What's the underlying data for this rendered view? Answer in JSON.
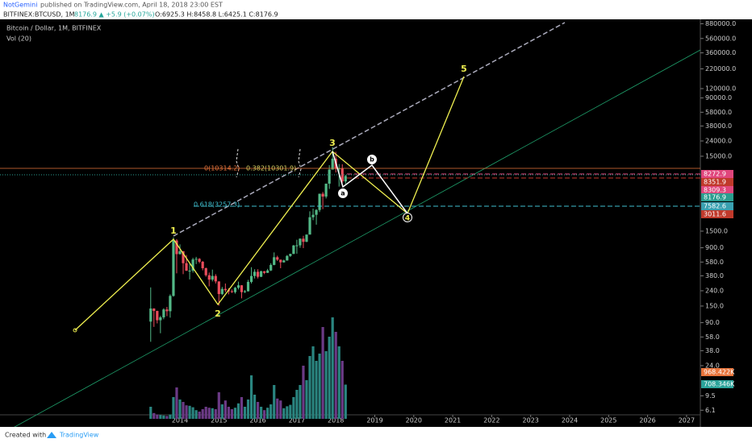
{
  "header": {
    "author": "NotGemini",
    "published": "published on TradingView.com, April 18, 2018 23:00 EST",
    "symbol": "BITFINEX:BTCUSD, 1M",
    "change": "8176.9 ▲ +5.9 (+0.07%)",
    "ohlc": "O:6925.3 H:8458.8 L:6425.1 C:8176.9"
  },
  "chart_data": {
    "type": "candlestick",
    "title": "Bitcoin / Dollar, 1M, BITFINEX",
    "indicator": "Vol (20)",
    "log_scale": true,
    "grid": false,
    "up_color": "#53b987",
    "down_color": "#eb4d5c",
    "vol_up_color": "#2a8580",
    "vol_down_color": "#6b3a86",
    "x": [
      "2013-04",
      "2013-05",
      "2013-06",
      "2013-07",
      "2013-08",
      "2013-09",
      "2013-10",
      "2013-11",
      "2013-12",
      "2014-01",
      "2014-02",
      "2014-03",
      "2014-04",
      "2014-05",
      "2014-06",
      "2014-07",
      "2014-08",
      "2014-09",
      "2014-10",
      "2014-11",
      "2014-12",
      "2015-01",
      "2015-02",
      "2015-03",
      "2015-04",
      "2015-05",
      "2015-06",
      "2015-07",
      "2015-08",
      "2015-09",
      "2015-10",
      "2015-11",
      "2015-12",
      "2016-01",
      "2016-02",
      "2016-03",
      "2016-04",
      "2016-05",
      "2016-06",
      "2016-07",
      "2016-08",
      "2016-09",
      "2016-10",
      "2016-11",
      "2016-12",
      "2017-01",
      "2017-02",
      "2017-03",
      "2017-04",
      "2017-05",
      "2017-06",
      "2017-07",
      "2017-08",
      "2017-09",
      "2017-10",
      "2017-11",
      "2017-12",
      "2018-01",
      "2018-02",
      "2018-03",
      "2018-04"
    ],
    "open": [
      93,
      139,
      129,
      97,
      106,
      135,
      128,
      205,
      1125,
      740,
      810,
      560,
      445,
      445,
      628,
      640,
      585,
      480,
      387,
      338,
      378,
      320,
      217,
      254,
      244,
      236,
      230,
      263,
      284,
      230,
      236,
      315,
      378,
      430,
      369,
      437,
      416,
      448,
      531,
      673,
      624,
      575,
      609,
      700,
      745,
      966,
      970,
      1190,
      1080,
      1350,
      2300,
      2480,
      2875,
      4735,
      4340,
      6450,
      9950,
      13900,
      10200,
      10300,
      6925.3
    ],
    "high": [
      266,
      140,
      130,
      111,
      140,
      146,
      215,
      1240,
      1175,
      1000,
      810,
      720,
      550,
      660,
      680,
      655,
      600,
      490,
      420,
      460,
      400,
      320,
      270,
      300,
      260,
      250,
      270,
      318,
      285,
      245,
      335,
      495,
      465,
      465,
      445,
      440,
      470,
      560,
      780,
      705,
      625,
      625,
      720,
      750,
      980,
      1150,
      1200,
      1300,
      1350,
      2760,
      3000,
      2950,
      4750,
      5000,
      6470,
      11400,
      19890,
      17200,
      11800,
      11700,
      8458.8
    ],
    "low": [
      50,
      79,
      88,
      65,
      100,
      110,
      105,
      200,
      410,
      730,
      400,
      440,
      340,
      420,
      545,
      560,
      450,
      370,
      275,
      320,
      300,
      152,
      210,
      230,
      215,
      225,
      220,
      250,
      190,
      225,
      235,
      300,
      350,
      350,
      365,
      400,
      415,
      440,
      525,
      600,
      480,
      570,
      605,
      680,
      740,
      750,
      900,
      890,
      1070,
      1350,
      2100,
      1830,
      2700,
      2950,
      4100,
      5500,
      10700,
      9100,
      5900,
      6600,
      6425.1
    ],
    "close": [
      139,
      129,
      97,
      106,
      135,
      128,
      205,
      1125,
      740,
      810,
      560,
      445,
      445,
      628,
      640,
      585,
      480,
      387,
      338,
      378,
      320,
      217,
      254,
      244,
      236,
      230,
      263,
      284,
      230,
      236,
      315,
      378,
      430,
      369,
      437,
      416,
      448,
      531,
      673,
      624,
      575,
      609,
      700,
      745,
      966,
      970,
      1190,
      1080,
      1350,
      2300,
      2480,
      2875,
      4735,
      4340,
      6450,
      9950,
      13900,
      10200,
      10300,
      6925.3,
      8176.9
    ],
    "volume": [
      250,
      120,
      90,
      80,
      70,
      60,
      90,
      450,
      650,
      400,
      350,
      280,
      270,
      240,
      180,
      150,
      200,
      250,
      230,
      220,
      200,
      550,
      300,
      380,
      250,
      200,
      230,
      320,
      450,
      250,
      400,
      900,
      500,
      350,
      250,
      180,
      230,
      300,
      700,
      420,
      380,
      220,
      260,
      290,
      450,
      600,
      700,
      1100,
      800,
      1300,
      1500,
      1200,
      1350,
      1900,
      1400,
      1700,
      2100,
      1800,
      1500,
      1200,
      708.346
    ],
    "ylim": [
      4.68,
      1114000
    ],
    "volume_lim": [
      0,
      3000
    ],
    "yticks": [
      {
        "value": 880000,
        "label": "880000.0"
      },
      {
        "value": 560000,
        "label": "560000.0"
      },
      {
        "value": 360000,
        "label": "360000.0"
      },
      {
        "value": 220000,
        "label": "220000.0"
      },
      {
        "value": 120000,
        "label": "120000.0"
      },
      {
        "value": 90000,
        "label": "90000.0"
      },
      {
        "value": 58000,
        "label": "58000.0"
      },
      {
        "value": 38000,
        "label": "38000.0"
      },
      {
        "value": 24000,
        "label": "24000.0"
      },
      {
        "value": 15000,
        "label": "15000.0"
      },
      {
        "value": 1500,
        "label": "1500.0"
      },
      {
        "value": 900,
        "label": "900.0"
      },
      {
        "value": 580,
        "label": "580.0"
      },
      {
        "value": 380,
        "label": "380.0"
      },
      {
        "value": 240,
        "label": "240.0"
      },
      {
        "value": 150,
        "label": "150.0"
      },
      {
        "value": 90,
        "label": "90.0"
      },
      {
        "value": 58,
        "label": "58.0"
      },
      {
        "value": 38,
        "label": "38.0"
      },
      {
        "value": 24,
        "label": "24.0"
      },
      {
        "value": 9.5,
        "label": "9.5"
      },
      {
        "value": 6.1,
        "label": "6.1"
      }
    ],
    "xticks": [
      "2014",
      "2015",
      "2016",
      "2017",
      "2018",
      "2019",
      "2020",
      "2021",
      "2022",
      "2023",
      "2024",
      "2025",
      "2026",
      "2027"
    ],
    "annotations": {
      "wave": [
        "1",
        "2",
        "3",
        "4",
        "5"
      ],
      "abc": [
        "a",
        "b"
      ],
      "fib": [
        "0(10314.2)",
        "0.382(10301.9)",
        "0.618(3257.3)"
      ]
    },
    "price_badges": [
      {
        "label": "8272.9",
        "color": "#e0467c"
      },
      {
        "label": "8351.9",
        "color": "#c0392b"
      },
      {
        "label": "8309.3",
        "color": "#e0467c"
      },
      {
        "label": "8176.9",
        "color": "#2a9d8f"
      },
      {
        "label": "7582.6",
        "color": "#3aa0b0"
      },
      {
        "label": "3011.6",
        "color": "#c0392b"
      },
      {
        "label": "968.422K",
        "color": "#e8743b"
      },
      {
        "label": "708.346K",
        "color": "#2aa39a"
      }
    ]
  },
  "footer": {
    "created": "Created with",
    "brand": "TradingView"
  }
}
